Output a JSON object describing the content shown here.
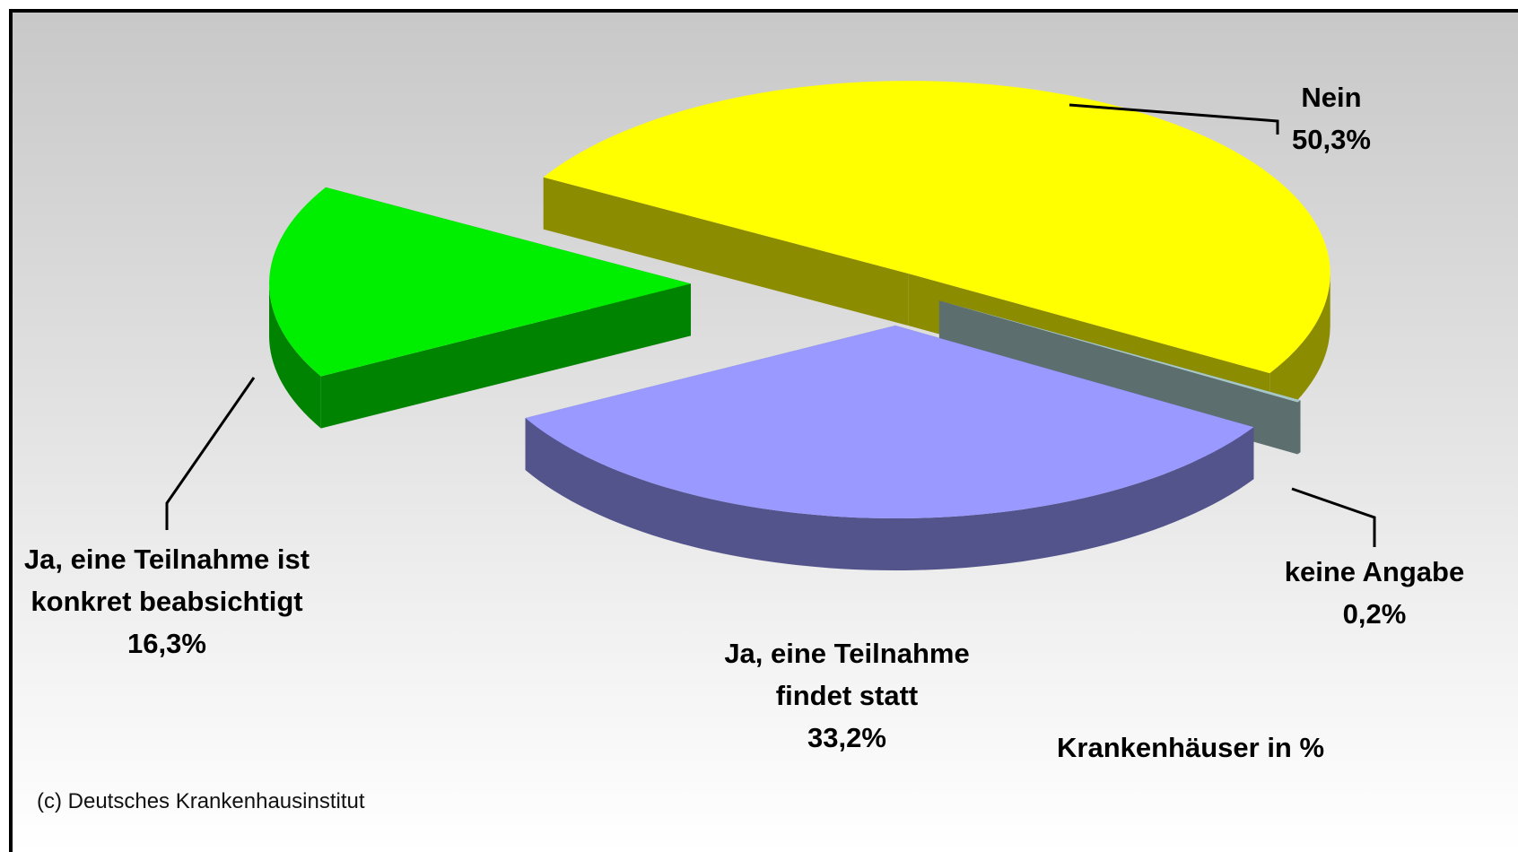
{
  "chart_data": {
    "type": "pie3d",
    "subtitle": "Krankenhäuser in %",
    "source": "(c) Deutsches Krankenhausinstitut",
    "categories": [
      "Nein",
      "keine Angabe",
      "Ja, eine Teilnahme findet statt",
      "Ja, eine Teilnahme ist konkret beabsichtigt"
    ],
    "values": [
      50.3,
      0.2,
      33.2,
      16.3
    ],
    "value_labels": [
      "50,3%",
      "0,2%",
      "33,2%",
      "16,3%"
    ],
    "colors": [
      "#ffff00",
      "#a8c8c8",
      "#9999ff",
      "#00ee00"
    ]
  }
}
